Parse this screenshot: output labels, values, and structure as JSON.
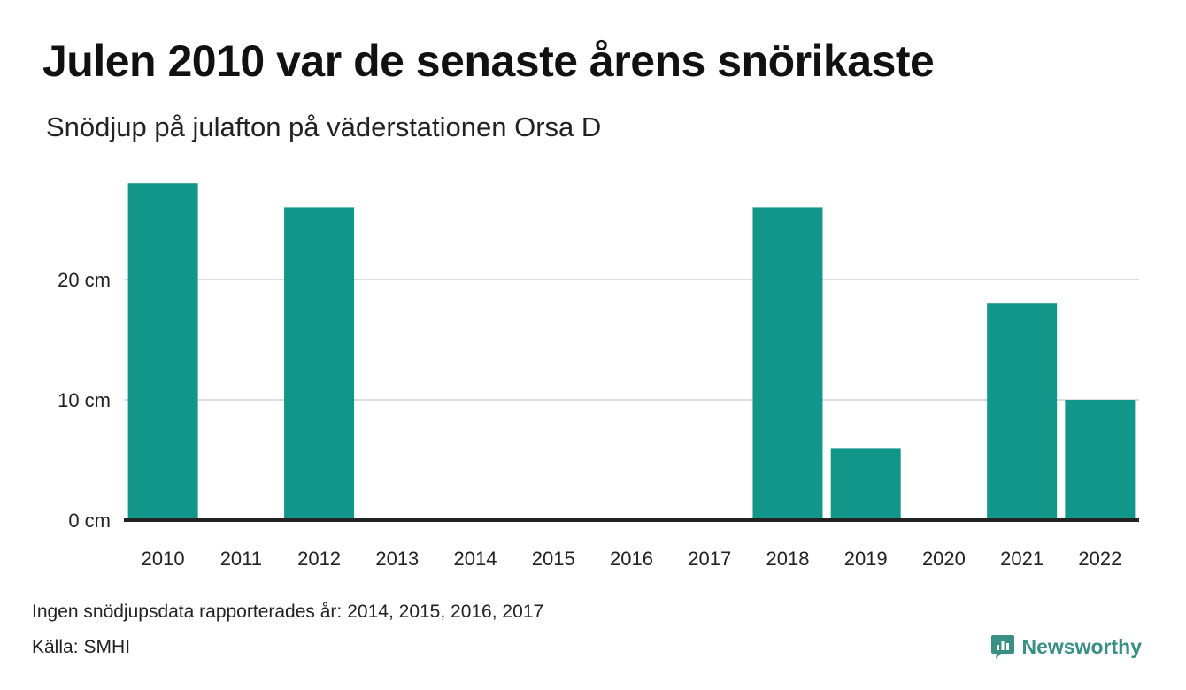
{
  "colors": {
    "bar": "#13968a",
    "grid": "#dddddd",
    "axis": "#222222",
    "brand": "#3a8f84"
  },
  "chart_data": {
    "type": "bar",
    "title": "Julen 2010 var de senaste årens snörikaste",
    "subtitle": "Snödjup på julafton på väderstationen Orsa D",
    "xlabel": "",
    "ylabel": "",
    "categories": [
      "2010",
      "2011",
      "2012",
      "2013",
      "2014",
      "2015",
      "2016",
      "2017",
      "2018",
      "2019",
      "2020",
      "2021",
      "2022"
    ],
    "values": [
      28,
      0,
      26,
      0,
      0,
      0,
      0,
      0,
      26,
      6,
      0,
      18,
      10
    ],
    "ylim": [
      0,
      28
    ],
    "yticks": [
      0,
      10,
      20
    ],
    "ytick_labels": [
      "0 cm",
      "10 cm",
      "20 cm"
    ],
    "grid": true,
    "legend": "none"
  },
  "footer": {
    "note_label": "Ingen snödjupsdata rapporterades år:",
    "note_years": "2014, 2015, 2016, 2017",
    "source_label": "Källa:",
    "source_value": "SMHI",
    "brand_icon": "newsworthy-logo-icon",
    "brand_name": "Newsworthy"
  }
}
